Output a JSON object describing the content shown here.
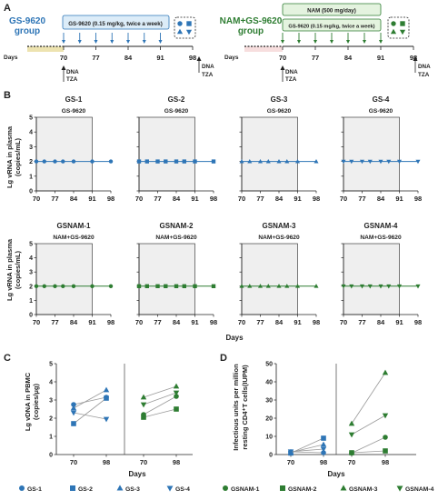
{
  "colors": {
    "blue": "#2e75b6",
    "green": "#2e7d32",
    "title_blue": "#2e75b6",
    "title_green": "#2e7d32",
    "timeline_blue_fill": "#dcecf8",
    "timeline_green_fill": "#e4f3df",
    "pre_blue_fill": "#ede3b0",
    "pre_green_fill": "#f7dede",
    "panel_fill": "#efefef",
    "text": "#222222"
  },
  "panel_labels": {
    "a": "A",
    "b": "B",
    "c": "C",
    "d": "D"
  },
  "panel_a": {
    "left": {
      "group_line1": "GS-9620",
      "group_line2": "group",
      "treatment": "GS-9620 (0.15 mg/kg, twice a week)",
      "axis_label": "Days",
      "ticks": [
        "70",
        "77",
        "84",
        "91",
        "98"
      ],
      "annot_start": [
        "DNA",
        "TZA"
      ],
      "annot_end": [
        "DNA",
        "TZA"
      ],
      "legend_icons": [
        "circle",
        "square",
        "triangle-up",
        "triangle-down"
      ]
    },
    "right": {
      "group_line1": "NAM+GS-9620",
      "group_line2": "group",
      "treatment_top": "NAM (500 mg/day)",
      "treatment": "GS-9620 (0.15 mg/kg, twice a week)",
      "axis_label": "Days",
      "ticks": [
        "70",
        "77",
        "84",
        "91",
        "98"
      ],
      "annot_start": [
        "DNA",
        "TZA"
      ],
      "annot_end": [
        "DNA",
        "TZA"
      ],
      "legend_icons": [
        "circle",
        "square",
        "triangle-up",
        "triangle-down"
      ]
    }
  },
  "chart_data": [
    {
      "type": "line",
      "panel": "B-top",
      "ylabel_lines": [
        "Lg vRNA in plasma",
        "(copies/mL)"
      ],
      "xticks": [
        "70",
        "77",
        "84",
        "91",
        "98"
      ],
      "yticks": [
        "0",
        "1",
        "2",
        "3",
        "4",
        "5"
      ],
      "ylim": [
        0,
        5
      ],
      "shaded_x": [
        70,
        91
      ],
      "series": [
        {
          "name": "GS-1",
          "subtitle": "GS-9620",
          "marker": "circle",
          "x": [
            70,
            73,
            77,
            80,
            84,
            91,
            98
          ],
          "y": [
            2,
            2,
            2,
            2,
            2,
            2,
            2
          ]
        },
        {
          "name": "GS-2",
          "subtitle": "GS-9620",
          "marker": "square",
          "x": [
            70,
            73,
            77,
            80,
            84,
            87,
            91,
            98
          ],
          "y": [
            2,
            2,
            2,
            2,
            2,
            2,
            2,
            2
          ]
        },
        {
          "name": "GS-3",
          "subtitle": "GS-9620",
          "marker": "triangle-up",
          "x": [
            70,
            73,
            77,
            80,
            84,
            87,
            91,
            98
          ],
          "y": [
            2,
            2,
            2,
            2,
            2,
            2,
            2,
            2
          ]
        },
        {
          "name": "GS-4",
          "subtitle": "GS-9620",
          "marker": "triangle-down",
          "x": [
            70,
            73,
            77,
            80,
            84,
            87,
            91,
            98
          ],
          "y": [
            2,
            2,
            2,
            2,
            2,
            2,
            2,
            2
          ]
        }
      ]
    },
    {
      "type": "line",
      "panel": "B-bottom",
      "ylabel_lines": [
        "Lg vRNA in plasma",
        "(copies/mL)"
      ],
      "xlabel": "Days",
      "xticks": [
        "70",
        "77",
        "84",
        "91",
        "98"
      ],
      "yticks": [
        "0",
        "1",
        "2",
        "3",
        "4",
        "5"
      ],
      "ylim": [
        0,
        5
      ],
      "shaded_x": [
        70,
        91
      ],
      "series": [
        {
          "name": "GSNAM-1",
          "subtitle": "NAM+GS-9620",
          "marker": "circle",
          "x": [
            70,
            73,
            77,
            80,
            84,
            91,
            98
          ],
          "y": [
            2,
            2,
            2,
            2,
            2,
            2,
            2
          ]
        },
        {
          "name": "GSNAM-2",
          "subtitle": "NAM+GS-9620",
          "marker": "square",
          "x": [
            70,
            73,
            77,
            80,
            84,
            87,
            91,
            98
          ],
          "y": [
            2,
            2,
            2,
            2,
            2,
            2,
            2,
            2
          ]
        },
        {
          "name": "GSNAM-3",
          "subtitle": "NAM+GS-9620",
          "marker": "triangle-up",
          "x": [
            70,
            73,
            77,
            80,
            84,
            87,
            91,
            98
          ],
          "y": [
            2,
            2,
            2,
            2,
            2,
            2,
            2,
            2
          ]
        },
        {
          "name": "GSNAM-4",
          "subtitle": "NAM+GS-9620",
          "marker": "triangle-down",
          "x": [
            70,
            73,
            77,
            80,
            84,
            87,
            91,
            98
          ],
          "y": [
            2,
            2,
            2,
            2,
            2,
            2,
            2,
            2
          ]
        }
      ]
    },
    {
      "type": "scatter",
      "panel": "C",
      "ylabel_lines": [
        "Lg vDNA in PBMC",
        "(copies/μg)"
      ],
      "xlabel": "Days",
      "ylim": [
        0,
        5
      ],
      "yticks": [
        "0",
        "1",
        "2",
        "3",
        "4",
        "5"
      ],
      "groups": [
        {
          "xticks": [
            "70",
            "98"
          ],
          "series": [
            {
              "name": "GS-1",
              "marker": "circle",
              "values": [
                2.75,
                3.15
              ]
            },
            {
              "name": "GS-2",
              "marker": "square",
              "values": [
                1.7,
                3.1
              ]
            },
            {
              "name": "GS-3",
              "marker": "triangle-up",
              "values": [
                2.55,
                3.55
              ]
            },
            {
              "name": "GS-4",
              "marker": "triangle-down",
              "values": [
                2.3,
                1.95
              ]
            }
          ]
        },
        {
          "xticks": [
            "70",
            "98"
          ],
          "series": [
            {
              "name": "GSNAM-1",
              "marker": "circle",
              "values": [
                2.2,
                3.2
              ]
            },
            {
              "name": "GSNAM-2",
              "marker": "square",
              "values": [
                2.05,
                2.5
              ]
            },
            {
              "name": "GSNAM-3",
              "marker": "triangle-up",
              "values": [
                3.15,
                3.75
              ]
            },
            {
              "name": "GSNAM-4",
              "marker": "triangle-down",
              "values": [
                2.75,
                3.4
              ]
            }
          ]
        }
      ]
    },
    {
      "type": "scatter",
      "panel": "D",
      "ylabel_lines": [
        "Infectious units per million",
        "resting CD4⁺T cells(IUPM)"
      ],
      "xlabel": "Days",
      "ylim": [
        0,
        50
      ],
      "yticks": [
        "0",
        "10",
        "20",
        "30",
        "40",
        "50"
      ],
      "groups": [
        {
          "xticks": [
            "70",
            "98"
          ],
          "series": [
            {
              "name": "GS-1",
              "marker": "circle",
              "values": [
                1.5,
                1.0
              ]
            },
            {
              "name": "GS-2",
              "marker": "square",
              "values": [
                0.8,
                9.0
              ]
            },
            {
              "name": "GS-3",
              "marker": "triangle-up",
              "values": [
                1.2,
                5.5
              ]
            },
            {
              "name": "GS-4",
              "marker": "triangle-down",
              "values": [
                1.6,
                3.0
              ]
            }
          ]
        },
        {
          "xticks": [
            "70",
            "98"
          ],
          "series": [
            {
              "name": "GSNAM-1",
              "marker": "circle",
              "values": [
                0.8,
                9.5
              ]
            },
            {
              "name": "GSNAM-2",
              "marker": "square",
              "values": [
                1.0,
                2.0
              ]
            },
            {
              "name": "GSNAM-3",
              "marker": "triangle-up",
              "values": [
                17.0,
                45.0
              ]
            },
            {
              "name": "GSNAM-4",
              "marker": "triangle-down",
              "values": [
                11.0,
                21.5
              ]
            }
          ]
        }
      ]
    }
  ],
  "legend": [
    {
      "label": "GS-1",
      "marker": "circle",
      "group": "gs"
    },
    {
      "label": "GS-2",
      "marker": "square",
      "group": "gs"
    },
    {
      "label": "GS-3",
      "marker": "triangle-up",
      "group": "gs"
    },
    {
      "label": "GS-4",
      "marker": "triangle-down",
      "group": "gs"
    },
    {
      "label": "GSNAM-1",
      "marker": "circle",
      "group": "gsnam"
    },
    {
      "label": "GSNAM-2",
      "marker": "square",
      "group": "gsnam"
    },
    {
      "label": "GSNAM-3",
      "marker": "triangle-up",
      "group": "gsnam"
    },
    {
      "label": "GSNAM-4",
      "marker": "triangle-down",
      "group": "gsnam"
    }
  ]
}
